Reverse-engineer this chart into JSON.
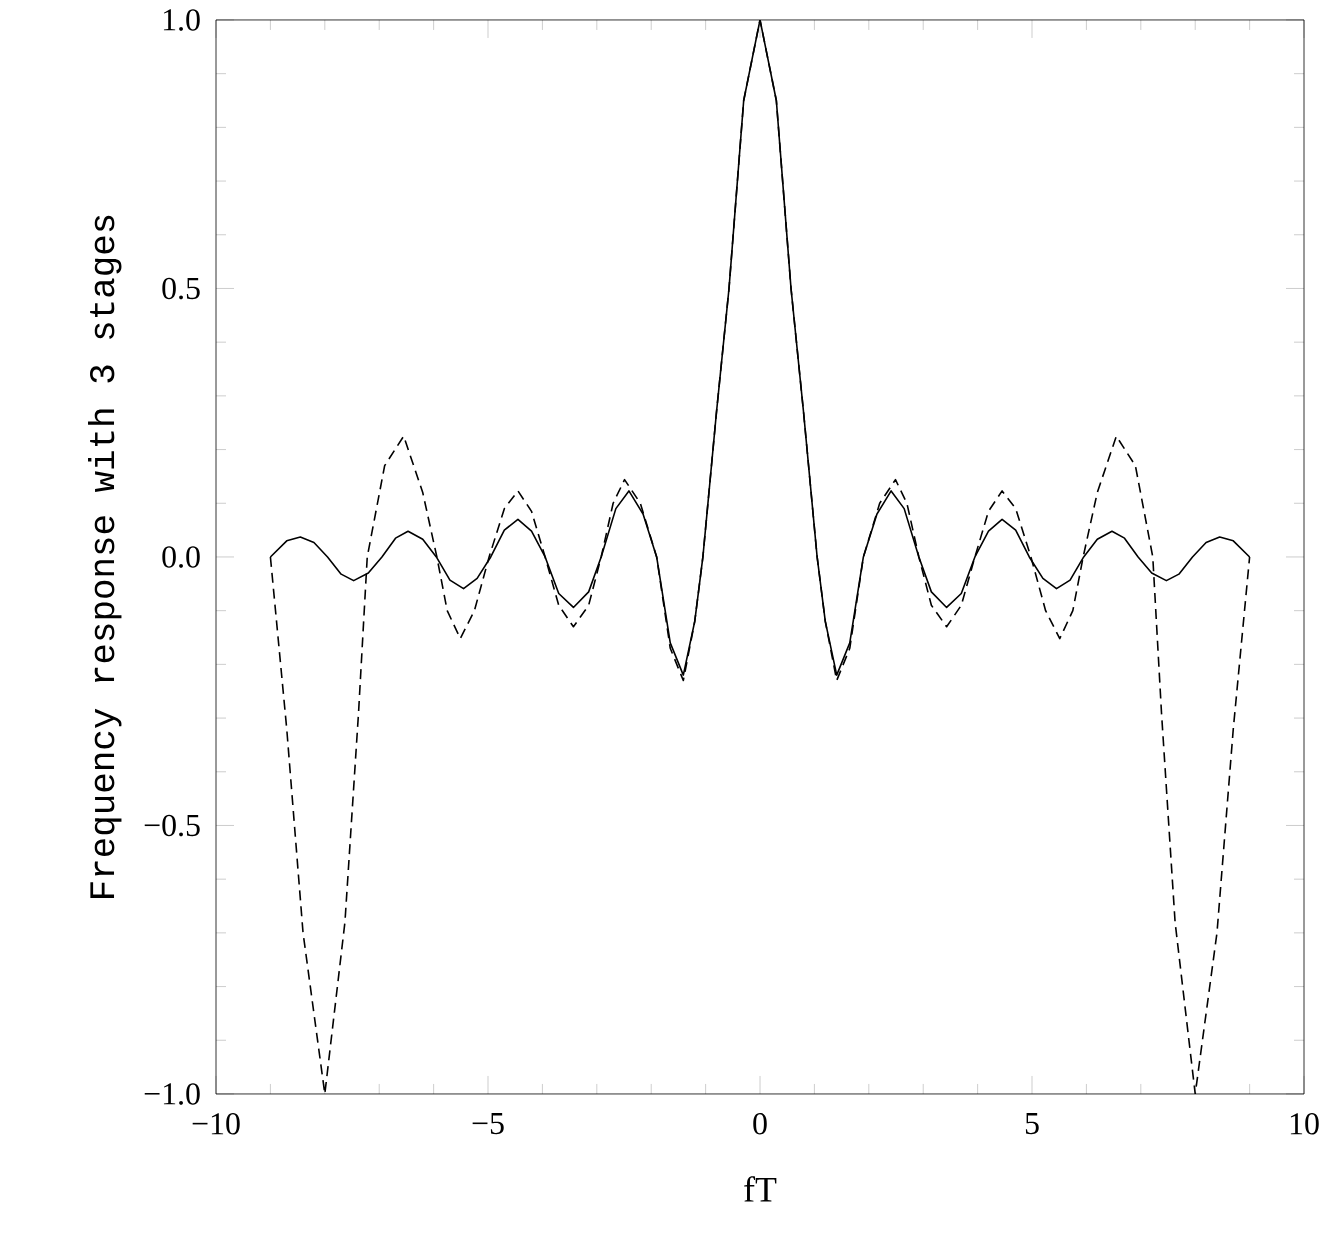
{
  "chart_data": {
    "type": "line",
    "xlabel": "fT",
    "ylabel": "Frequency response with 3 stages",
    "xlim": [
      -10,
      10
    ],
    "ylim": [
      -1,
      1
    ],
    "xticks": [
      {
        "value": -10,
        "label": "−10"
      },
      {
        "value": -5,
        "label": "−5"
      },
      0,
      5,
      10
    ],
    "yticks": [
      {
        "value": -1,
        "label": "−1.0"
      },
      {
        "value": -0.5,
        "label": "−0.5"
      },
      {
        "value": 0,
        "label": "0.0"
      },
      {
        "value": 0.5,
        "label": "0.5"
      },
      {
        "value": 1,
        "label": "1.0"
      }
    ],
    "grid": false,
    "marker": "none",
    "series": [
      {
        "color": "#000000",
        "line_style": "solid",
        "x": [
          -9.0,
          -8.7,
          -8.45,
          -8.2,
          -7.95,
          -7.7,
          -7.47,
          -7.2,
          -6.95,
          -6.7,
          -6.47,
          -6.2,
          -5.95,
          -5.7,
          -5.45,
          -5.2,
          -4.95,
          -4.7,
          -4.45,
          -4.2,
          -3.95,
          -3.7,
          -3.43,
          -3.15,
          -2.92,
          -2.65,
          -2.41,
          -2.15,
          -1.9,
          -1.65,
          -1.41,
          -1.2,
          -1.05,
          -0.8,
          -0.57,
          -0.3,
          0,
          0.3,
          0.57,
          0.8,
          1.05,
          1.2,
          1.41,
          1.65,
          1.9,
          2.15,
          2.41,
          2.65,
          2.92,
          3.15,
          3.43,
          3.7,
          3.95,
          4.2,
          4.45,
          4.7,
          4.95,
          5.2,
          5.45,
          5.7,
          5.95,
          6.2,
          6.47,
          6.7,
          6.95,
          7.2,
          7.47,
          7.7,
          7.95,
          8.2,
          8.45,
          8.7,
          9.0
        ],
        "values": [
          0,
          0.03,
          0.037,
          0.027,
          0,
          -0.032,
          -0.044,
          -0.03,
          0,
          0.035,
          0.048,
          0.033,
          0,
          -0.043,
          -0.059,
          -0.04,
          0,
          0.05,
          0.07,
          0.048,
          0,
          -0.068,
          -0.094,
          -0.065,
          0,
          0.09,
          0.123,
          0.08,
          0,
          -0.16,
          -0.22,
          -0.12,
          0,
          0.27,
          0.5,
          0.85,
          1.0,
          0.85,
          0.5,
          0.27,
          0,
          -0.12,
          -0.22,
          -0.16,
          0,
          0.08,
          0.123,
          0.09,
          0,
          -0.065,
          -0.094,
          -0.068,
          0,
          0.048,
          0.07,
          0.05,
          0,
          -0.04,
          -0.059,
          -0.043,
          0,
          0.033,
          0.048,
          0.035,
          0,
          -0.03,
          -0.044,
          -0.032,
          0,
          0.027,
          0.037,
          0.03,
          0
        ]
      },
      {
        "color": "#000000",
        "line_style": "dashed",
        "x": [
          -9.0,
          -8.7,
          -8.4,
          -8.0,
          -7.63,
          -7.38,
          -7.22,
          -6.9,
          -6.55,
          -6.2,
          -5.94,
          -5.75,
          -5.51,
          -5.25,
          -4.98,
          -4.7,
          -4.45,
          -4.2,
          -3.95,
          -3.7,
          -3.43,
          -3.15,
          -2.92,
          -2.7,
          -2.49,
          -2.2,
          -1.9,
          -1.65,
          -1.41,
          -1.2,
          -1.05,
          -0.8,
          -0.57,
          -0.3,
          0,
          0.3,
          0.57,
          0.8,
          1.05,
          1.2,
          1.41,
          1.65,
          1.9,
          2.2,
          2.49,
          2.7,
          2.92,
          3.15,
          3.43,
          3.7,
          3.95,
          4.2,
          4.45,
          4.7,
          4.98,
          5.25,
          5.51,
          5.75,
          5.94,
          6.2,
          6.55,
          6.9,
          7.22,
          7.38,
          7.63,
          8.0,
          8.4,
          8.7,
          9.0
        ],
        "values": [
          0,
          -0.32,
          -0.7,
          -1.0,
          -0.68,
          -0.29,
          0,
          0.17,
          0.225,
          0.12,
          0,
          -0.1,
          -0.152,
          -0.1,
          0,
          0.09,
          0.123,
          0.085,
          0,
          -0.09,
          -0.13,
          -0.09,
          0,
          0.1,
          0.144,
          0.1,
          0,
          -0.17,
          -0.23,
          -0.12,
          0,
          0.27,
          0.5,
          0.85,
          1.0,
          0.85,
          0.5,
          0.27,
          0,
          -0.12,
          -0.23,
          -0.17,
          0,
          0.1,
          0.144,
          0.1,
          0,
          -0.09,
          -0.13,
          -0.09,
          0,
          0.085,
          0.123,
          0.09,
          0,
          -0.1,
          -0.152,
          -0.1,
          0,
          0.12,
          0.225,
          0.17,
          0,
          -0.29,
          -0.68,
          -1.0,
          -0.7,
          -0.32,
          0
        ]
      }
    ]
  }
}
